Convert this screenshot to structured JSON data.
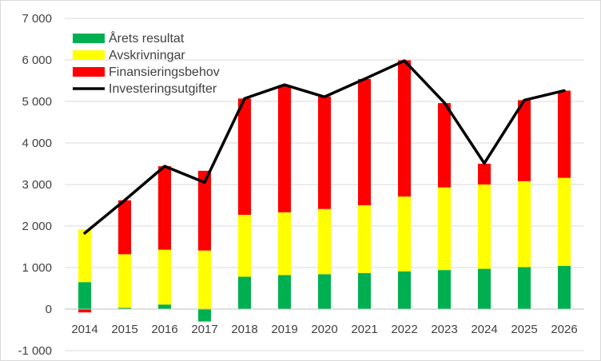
{
  "chart_data": {
    "type": "bar",
    "stacked": true,
    "categories": [
      "2014",
      "2015",
      "2016",
      "2017",
      "2018",
      "2019",
      "2020",
      "2021",
      "2022",
      "2023",
      "2024",
      "2025",
      "2026"
    ],
    "series": [
      {
        "name": "Årets resultat",
        "kind": "bar",
        "color": "#00b050",
        "values": [
          650,
          30,
          110,
          -300,
          780,
          820,
          840,
          870,
          910,
          940,
          970,
          1010,
          1040
        ]
      },
      {
        "name": "Avskrivningar",
        "kind": "bar",
        "color": "#ffff00",
        "values": [
          1270,
          1290,
          1320,
          1410,
          1490,
          1510,
          1570,
          1630,
          1800,
          1990,
          2030,
          2070,
          2120
        ]
      },
      {
        "name": "Finansieringsbehov",
        "kind": "bar",
        "color": "#ff0000",
        "values": [
          -80,
          1300,
          2010,
          1920,
          2800,
          3060,
          2710,
          3040,
          3280,
          2030,
          500,
          1950,
          2100
        ]
      },
      {
        "name": "Investeringsutgifter",
        "kind": "line",
        "color": "#000000",
        "values": [
          1830,
          2620,
          3440,
          3050,
          5070,
          5400,
          5110,
          5540,
          5980,
          4970,
          3510,
          5030,
          5260
        ]
      }
    ],
    "ylim": [
      -1000,
      7000
    ],
    "yticks": [
      -1000,
      0,
      1000,
      2000,
      3000,
      4000,
      5000,
      6000,
      7000
    ],
    "ytick_labels": [
      "-1 000",
      "0",
      "1 000",
      "2 000",
      "3 000",
      "4 000",
      "5 000",
      "6 000",
      "7 000"
    ],
    "grid": true,
    "legend_position": "top-left",
    "title": "",
    "xlabel": "",
    "ylabel": ""
  }
}
